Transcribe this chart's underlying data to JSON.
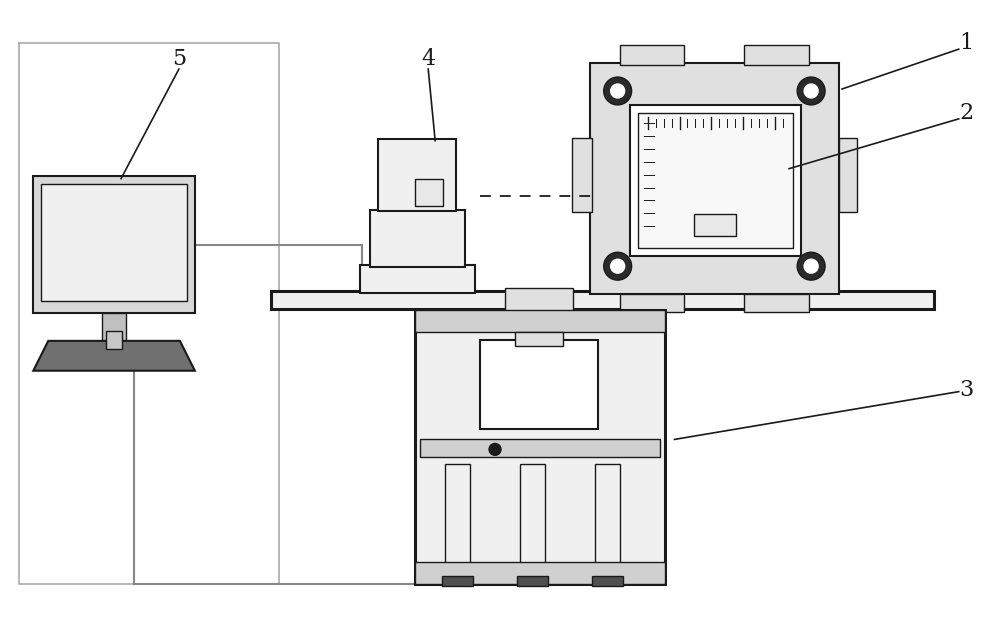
{
  "bg_color": "#ffffff",
  "line_color": "#1a1a1a",
  "gray_color": "#888888",
  "fig_width": 10.0,
  "fig_height": 6.21,
  "dpi": 100
}
